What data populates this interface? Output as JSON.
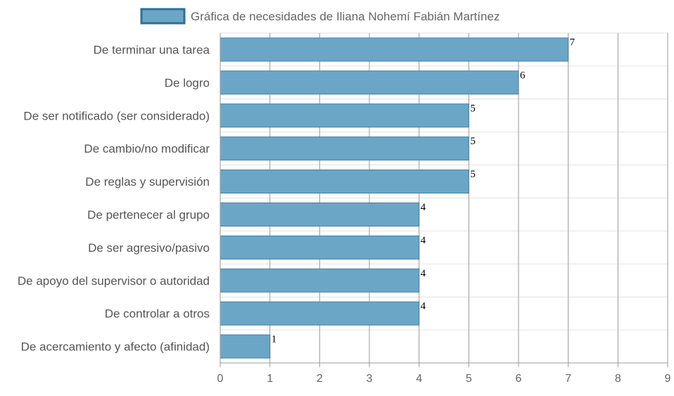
{
  "chart_data": {
    "type": "bar",
    "orientation": "horizontal",
    "legend": {
      "label": "Gráfica de necesidades de Iliana Nohemí Fabián Martínez",
      "position": "top"
    },
    "categories": [
      "De terminar una tarea",
      "De logro",
      "De ser notificado (ser considerado)",
      "De cambio/no modificar",
      "De reglas y supervisión",
      "De pertenecer al grupo",
      "De ser agresivo/pasivo",
      "De apoyo del supervisor o autoridad",
      "De controlar a otros",
      "De acercamiento y afecto (afinidad)"
    ],
    "series": [
      {
        "name": "Gráfica de necesidades de Iliana Nohemí Fabián Martínez",
        "values": [
          7,
          6,
          5,
          5,
          5,
          4,
          4,
          4,
          4,
          1
        ]
      }
    ],
    "data_labels": [
      "7",
      "6",
      "5",
      "5",
      "5",
      "4",
      "4",
      "4",
      "4",
      "1"
    ],
    "x_ticks": [
      "0",
      "1",
      "2",
      "3",
      "4",
      "5",
      "6",
      "7",
      "8",
      "9"
    ],
    "xlim": [
      0,
      9
    ],
    "grid": true,
    "colors": {
      "bar_fill": "#6ca6c6",
      "bar_stroke": "#3d7ea6",
      "legend_fill": "#6ca6c6",
      "legend_stroke": "#2f6f98",
      "grid_major": "#999999",
      "grid_minor": "#e2e2e2"
    }
  }
}
